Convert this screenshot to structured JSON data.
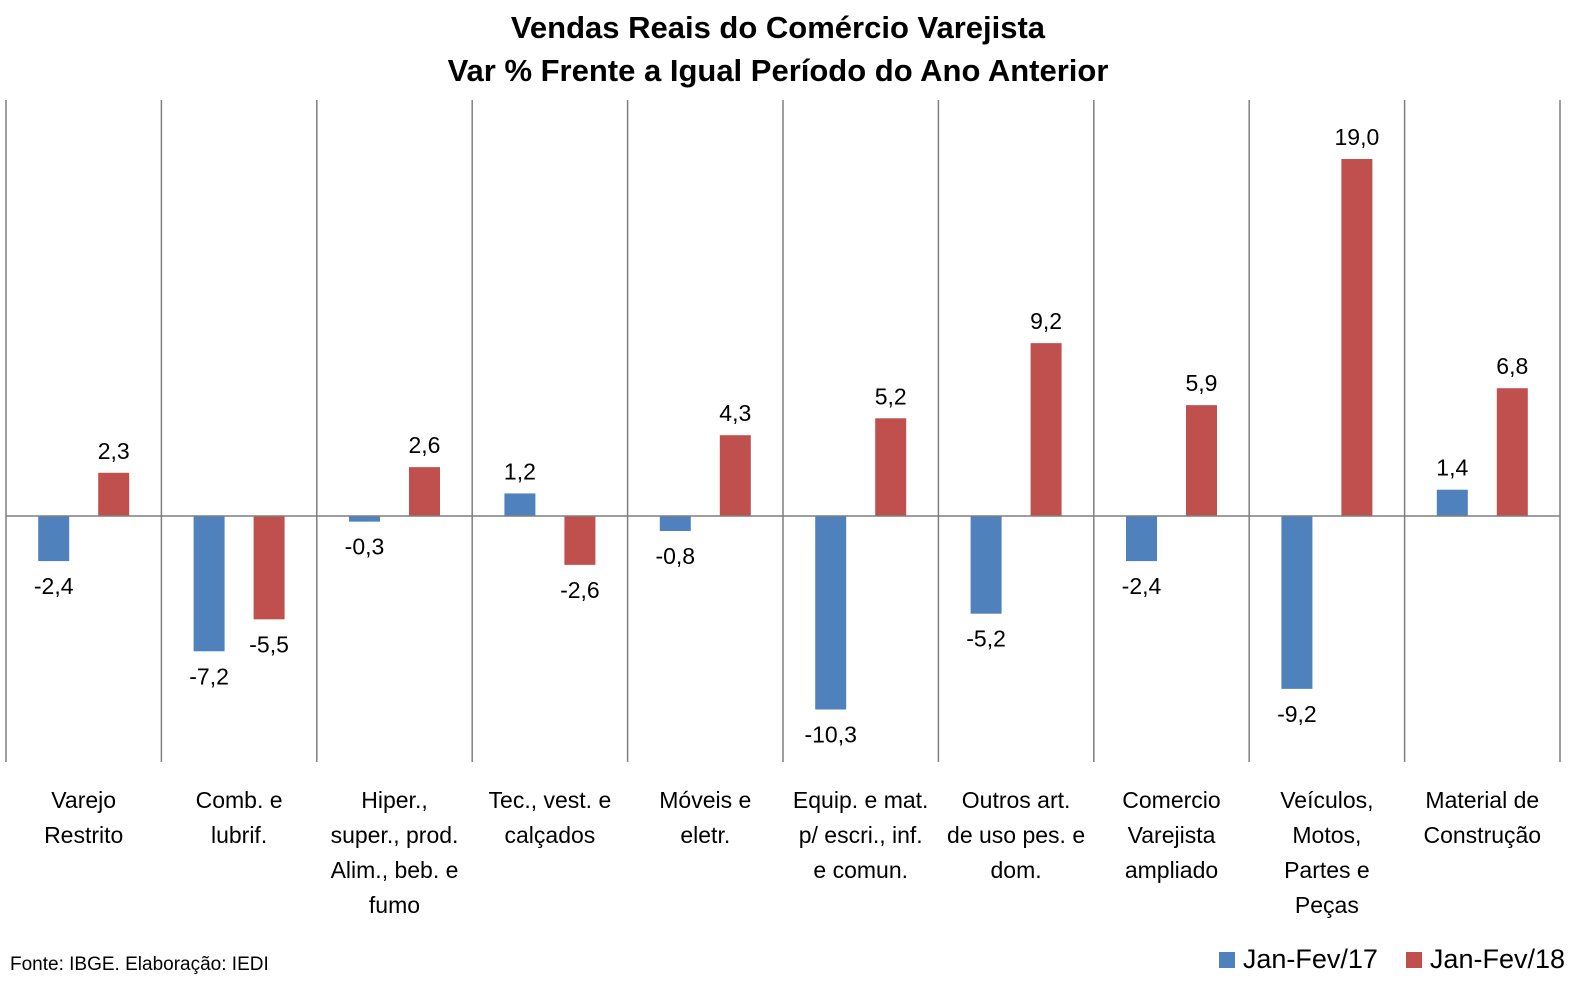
{
  "chart_data": {
    "type": "bar",
    "title": [
      "Vendas Reais do Comércio Varejista",
      "Var % Frente a Igual Período do Ano Anterior"
    ],
    "categories": [
      [
        "Varejo",
        "Restrito"
      ],
      [
        "Comb. e",
        "lubrif."
      ],
      [
        "Hiper.,",
        "super., prod.",
        "Alim., beb. e",
        "fumo"
      ],
      [
        "Tec., vest. e",
        "calçados"
      ],
      [
        "Móveis e",
        "eletr."
      ],
      [
        "Equip. e mat.",
        "p/ escri., inf.",
        "e comun."
      ],
      [
        "Outros art.",
        "de uso pes. e",
        "dom."
      ],
      [
        "Comercio",
        "Varejista",
        "ampliado"
      ],
      [
        "Veículos,",
        "Motos,",
        "Partes e",
        "Peças"
      ],
      [
        "Material de",
        "Construção"
      ]
    ],
    "series": [
      {
        "name": "Jan-Fev/17",
        "color": "#4f81bd",
        "values": [
          -2.4,
          -7.2,
          -0.3,
          1.2,
          -0.8,
          -10.3,
          -5.2,
          -2.4,
          -9.2,
          1.4
        ],
        "labels": [
          "-2,4",
          "-7,2",
          "-0,3",
          "1,2",
          "-0,8",
          "-10,3",
          "-5,2",
          "-2,4",
          "-9,2",
          "1,4"
        ]
      },
      {
        "name": "Jan-Fev/18",
        "color": "#c0504d",
        "values": [
          2.3,
          -5.5,
          2.6,
          -2.6,
          4.3,
          5.2,
          9.2,
          5.9,
          19.0,
          6.8
        ],
        "labels": [
          "2,3",
          "-5,5",
          "2,6",
          "-2,6",
          "4,3",
          "5,2",
          "9,2",
          "5,9",
          "19,0",
          "6,8"
        ]
      }
    ],
    "grid": false,
    "legend_position": "bottom-right"
  },
  "source": "Fonte: IBGE. Elaboração: IEDI"
}
